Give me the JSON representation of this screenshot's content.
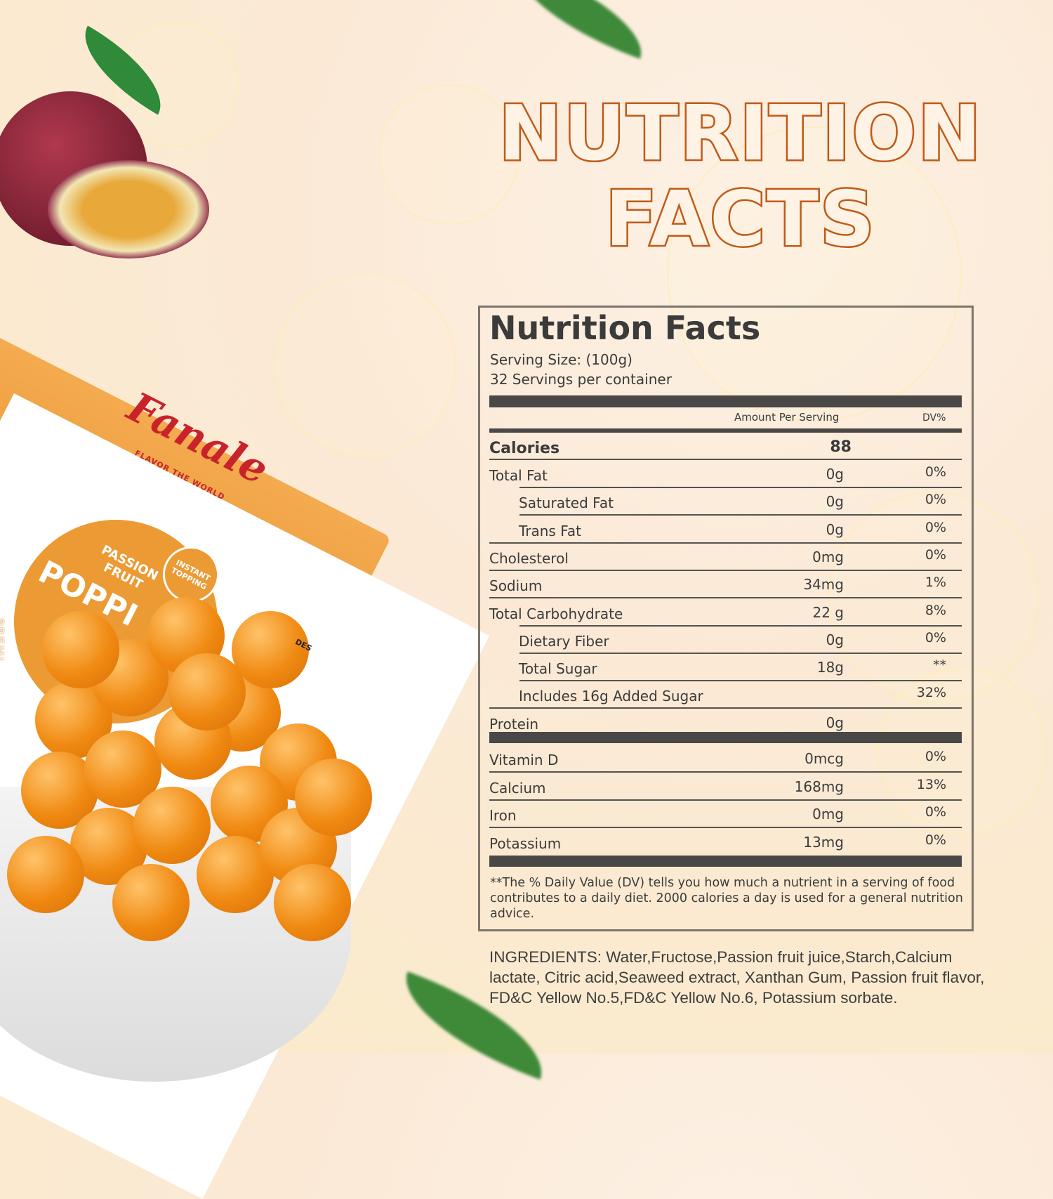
{
  "headline": {
    "line1": "NUTRITION",
    "line2": "FACTS",
    "color": "#bf5a17"
  },
  "product": {
    "brand": "Fanale",
    "tagline": "FLAVOR THE WORLD",
    "flavor": "PASSION FRUIT",
    "name": "POPPI",
    "badge": "INSTANT TOPPING",
    "side_text": "PREMI",
    "desc": "DES"
  },
  "label": {
    "title": "Nutrition Facts",
    "serving_size": "Serving Size:  (100g)",
    "servings": "32 Servings per container",
    "col_amount": "Amount Per Serving",
    "col_dv": "DV%",
    "calories": {
      "name": "Calories",
      "amount": "88"
    },
    "nutrients": [
      {
        "name": "Total Fat",
        "amount": "0g",
        "dv": "0%"
      },
      {
        "name": "Saturated Fat",
        "amount": "0g",
        "dv": "0%"
      },
      {
        "name": "Trans Fat",
        "amount": "0g",
        "dv": "0%"
      },
      {
        "name": "Cholesterol",
        "amount": "0mg",
        "dv": "0%"
      },
      {
        "name": "Sodium",
        "amount": "34mg",
        "dv": "1%"
      },
      {
        "name": "Total Carbohydrate",
        "amount": "22 g",
        "dv": "8%"
      },
      {
        "name": "Dietary Fiber",
        "amount": "0g",
        "dv": "0%"
      },
      {
        "name": "Total Sugar",
        "amount": "18g",
        "dv": "**"
      },
      {
        "name": "Includes 16g Added Sugar",
        "amount": "",
        "dv": "32%"
      },
      {
        "name": "Protein",
        "amount": "0g",
        "dv": ""
      }
    ],
    "vitamins": [
      {
        "name": "Vitamin D",
        "amount": "0mcg",
        "dv": "0%"
      },
      {
        "name": "Calcium",
        "amount": "168mg",
        "dv": "13%"
      },
      {
        "name": "Iron",
        "amount": "0mg",
        "dv": "0%"
      },
      {
        "name": "Potassium",
        "amount": "13mg",
        "dv": "0%"
      }
    ],
    "footnote": "**The % Daily Value (DV) tells you how much a nutrient in a serving of food contributes to a daily diet. 2000 calories a  day is used for a general nutrition advice."
  },
  "ingredients": "INGREDIENTS: Water,Fructose,Passion fruit juice,Starch,Calcium lactate, Citric acid,Seaweed extract, Xanthan Gum, Passion fruit flavor, FD&C Yellow No.5,FD&C Yellow No.6, Potassium sorbate."
}
